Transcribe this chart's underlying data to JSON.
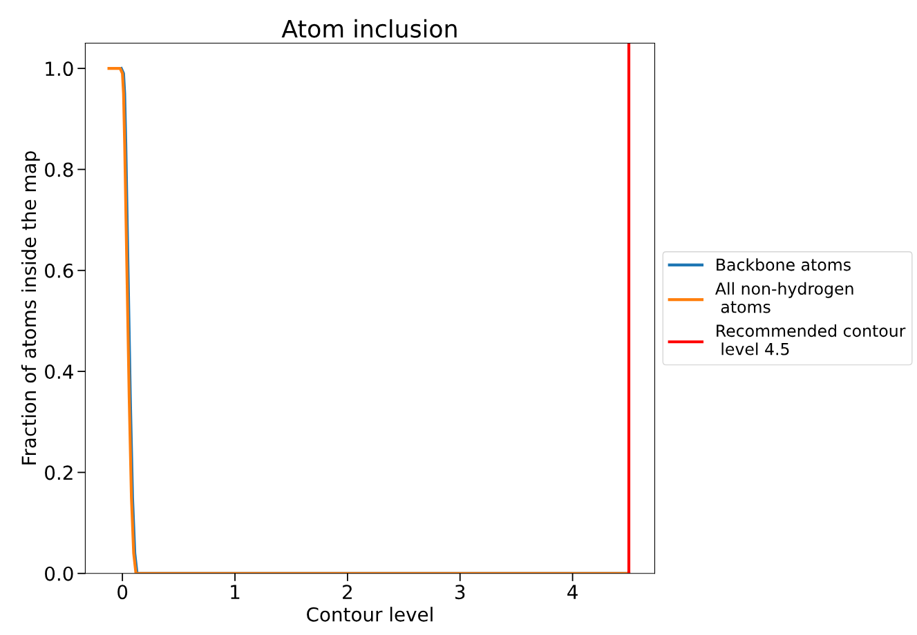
{
  "chart_data": {
    "type": "line",
    "title": "Atom inclusion",
    "xlabel": "Contour level",
    "ylabel": "Fraction of atoms inside the map",
    "series": [
      {
        "name": "Backbone atoms",
        "color": "#1f77b4",
        "x": [
          -0.01,
          0.01,
          0.02,
          0.03,
          0.05,
          0.07,
          0.09,
          0.11,
          0.13,
          4.5
        ],
        "values": [
          1.0,
          0.99,
          0.95,
          0.85,
          0.6,
          0.35,
          0.15,
          0.04,
          0.0,
          0.0
        ]
      },
      {
        "name": "All non-hydrogen\n atoms",
        "color": "#ff7f0e",
        "x": [
          -0.12,
          -0.02,
          0.0,
          0.01,
          0.02,
          0.04,
          0.06,
          0.08,
          0.1,
          0.12,
          4.5
        ],
        "values": [
          1.0,
          1.0,
          0.99,
          0.95,
          0.85,
          0.6,
          0.35,
          0.15,
          0.04,
          0.0,
          0.0
        ]
      },
      {
        "name": "Recommended contour\n level 4.5",
        "color": "#ff0000",
        "x": [
          4.5,
          4.5
        ],
        "values": [
          0,
          1.05
        ]
      }
    ],
    "xlim": [
      -0.33,
      4.73
    ],
    "ylim": [
      0,
      1.05
    ],
    "xticks": [
      0,
      1,
      2,
      3,
      4
    ],
    "yticks": [
      {
        "value": 0,
        "label": "0.0"
      },
      {
        "value": 0.2,
        "label": "0.2"
      },
      {
        "value": 0.4,
        "label": "0.4"
      },
      {
        "value": 0.6,
        "label": "0.6"
      },
      {
        "value": 0.8,
        "label": "0.8"
      },
      {
        "value": 1.0,
        "label": "1.0"
      }
    ],
    "legend": "right",
    "grid": false
  }
}
